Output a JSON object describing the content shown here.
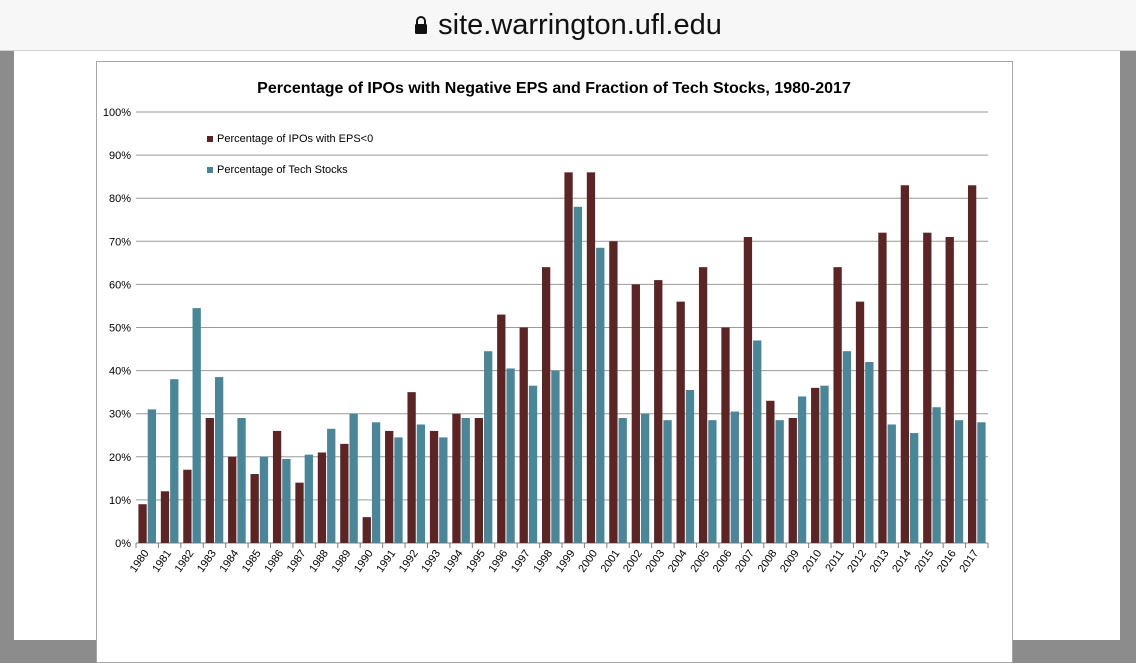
{
  "browser": {
    "url": "site.warrington.ufl.edu",
    "lock_icon": "lock-icon"
  },
  "colors": {
    "eps_series": "#5b2525",
    "tech_series": "#4a8598",
    "grid": "#9a9a9a",
    "text": "#000000"
  },
  "chart_data": {
    "type": "bar",
    "title": "Percentage of IPOs with Negative EPS and Fraction of Tech Stocks, 1980-2017",
    "xlabel": "",
    "ylabel": "",
    "ylim": [
      0,
      100
    ],
    "y_ticks": [
      "0%",
      "10%",
      "20%",
      "30%",
      "40%",
      "50%",
      "60%",
      "70%",
      "80%",
      "90%",
      "100%"
    ],
    "grid": true,
    "legend_position": "top-left",
    "categories": [
      "1980",
      "1981",
      "1982",
      "1983",
      "1984",
      "1985",
      "1986",
      "1987",
      "1988",
      "1989",
      "1990",
      "1991",
      "1992",
      "1993",
      "1994",
      "1995",
      "1996",
      "1997",
      "1998",
      "1999",
      "2000",
      "2001",
      "2002",
      "2003",
      "2004",
      "2005",
      "2006",
      "2007",
      "2008",
      "2009",
      "2010",
      "2011",
      "2012",
      "2013",
      "2014",
      "2015",
      "2016",
      "2017"
    ],
    "series": [
      {
        "name": "Percentage of IPOs with EPS<0",
        "values": [
          9,
          12,
          17,
          29,
          20,
          16,
          26,
          14,
          21,
          23,
          6,
          26,
          35,
          26,
          30,
          29,
          53,
          50,
          64,
          86,
          86,
          70,
          60,
          61,
          56,
          64,
          50,
          71,
          33,
          29,
          36,
          64,
          56,
          72,
          83,
          72,
          71,
          83
        ]
      },
      {
        "name": "Percentage of Tech Stocks",
        "values": [
          31,
          38,
          54.5,
          38.5,
          29,
          20,
          19.5,
          20.5,
          26.5,
          30,
          28,
          24.5,
          27.5,
          24.5,
          29,
          44.5,
          40.5,
          36.5,
          40,
          78,
          68.5,
          29,
          30,
          28.5,
          35.5,
          28.5,
          30.5,
          47,
          28.5,
          34,
          36.5,
          44.5,
          42,
          27.5,
          25.5,
          31.5,
          28.5,
          28
        ]
      }
    ]
  }
}
